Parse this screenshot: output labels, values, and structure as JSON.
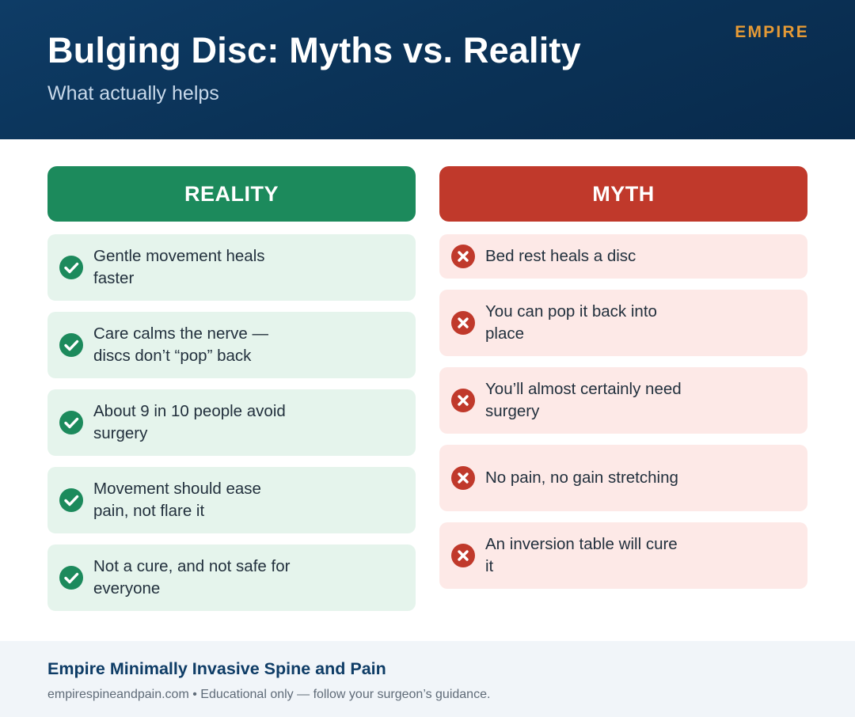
{
  "header": {
    "title": "Bulging Disc: Myths vs. Reality",
    "subtitle": "What actually helps",
    "brand": "EMPIRE"
  },
  "columns": {
    "reality": {
      "heading": "REALITY",
      "icon": "check-circle-icon",
      "color": "#1c8a5c",
      "items": [
        "Gentle movement heals faster",
        "Care calms the nerve — discs don’t “pop” back",
        "About 9 in 10 people avoid surgery",
        "Movement should ease pain, not flare it",
        "Not a cure, and not safe for everyone"
      ]
    },
    "myth": {
      "heading": "MYTH",
      "icon": "x-circle-icon",
      "color": "#c0392b",
      "items": [
        "Bed rest heals a disc",
        "You can pop it back into place",
        "You’ll almost certainly need surgery",
        "No pain, no gain stretching",
        "An inversion table will cure it"
      ]
    }
  },
  "footer": {
    "org": "Empire Minimally Invasive Spine and Pain",
    "note": "empirespineandpain.com • Educational only — follow your surgeon’s guidance."
  }
}
